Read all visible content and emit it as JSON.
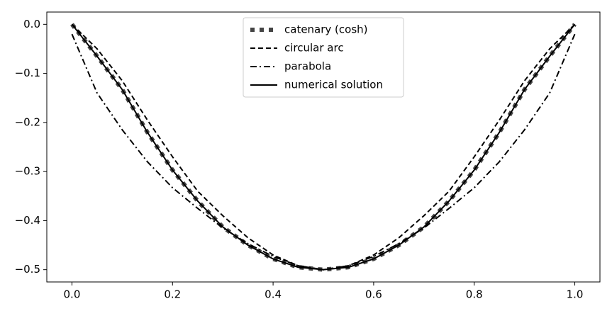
{
  "chart_data": {
    "type": "line",
    "x": [
      0,
      0.05,
      0.1,
      0.15,
      0.2,
      0.25,
      0.3,
      0.35,
      0.4,
      0.45,
      0.5,
      0.55,
      0.6,
      0.65,
      0.7,
      0.75,
      0.8,
      0.85,
      0.9,
      0.95,
      1
    ],
    "series": [
      {
        "name": "catenary (cosh)",
        "color": "#444444",
        "linestyle": "dotted",
        "values": [
          0,
          -0.065,
          -0.133,
          -0.22,
          -0.297,
          -0.36,
          -0.413,
          -0.45,
          -0.478,
          -0.495,
          -0.5,
          -0.495,
          -0.478,
          -0.45,
          -0.413,
          -0.36,
          -0.297,
          -0.22,
          -0.133,
          -0.065,
          0
        ]
      },
      {
        "name": "circular arc",
        "color": "#000000",
        "linestyle": "dashed",
        "values": [
          0,
          -0.05,
          -0.115,
          -0.195,
          -0.27,
          -0.34,
          -0.39,
          -0.435,
          -0.47,
          -0.492,
          -0.5,
          -0.492,
          -0.47,
          -0.435,
          -0.39,
          -0.34,
          -0.27,
          -0.195,
          -0.115,
          -0.05,
          0
        ]
      },
      {
        "name": "parabola",
        "color": "#000000",
        "linestyle": "dashdot",
        "values": [
          -0.02,
          -0.14,
          -0.215,
          -0.28,
          -0.333,
          -0.375,
          -0.415,
          -0.447,
          -0.473,
          -0.492,
          -0.5,
          -0.492,
          -0.473,
          -0.447,
          -0.415,
          -0.375,
          -0.333,
          -0.28,
          -0.215,
          -0.14,
          -0.02
        ]
      },
      {
        "name": "numerical solution",
        "color": "#000000",
        "linestyle": "solid",
        "values": [
          0,
          -0.065,
          -0.133,
          -0.22,
          -0.297,
          -0.36,
          -0.413,
          -0.45,
          -0.478,
          -0.495,
          -0.5,
          -0.495,
          -0.478,
          -0.45,
          -0.413,
          -0.36,
          -0.297,
          -0.22,
          -0.133,
          -0.065,
          0
        ]
      }
    ],
    "xlim": [
      -0.05,
      1.05
    ],
    "ylim": [
      -0.525,
      0.025
    ],
    "xticks": [
      {
        "value": 0,
        "label": "0.0"
      },
      0.2,
      0.4,
      0.6,
      0.8,
      {
        "value": 1,
        "label": "1.0"
      }
    ],
    "yticks": [
      {
        "value": 0,
        "label": "0.0"
      },
      -0.1,
      -0.2,
      -0.3,
      -0.4,
      -0.5
    ],
    "legend": "upper center"
  }
}
